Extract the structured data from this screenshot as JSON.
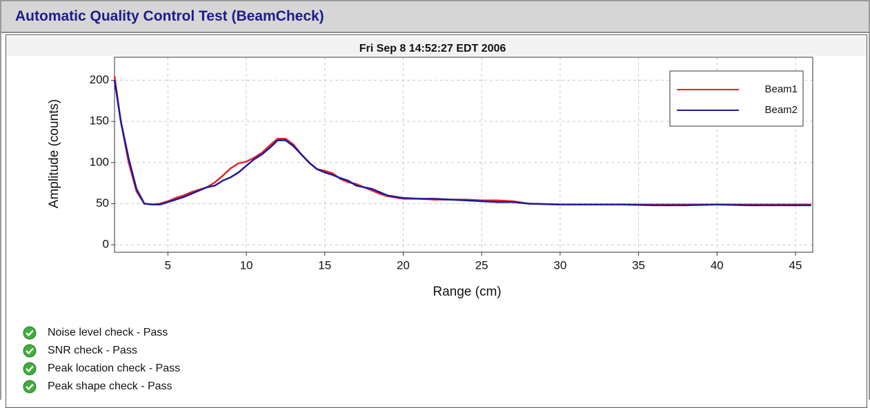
{
  "header": {
    "title": "Automatic Quality Control Test (BeamCheck)"
  },
  "chart_data": {
    "type": "line",
    "title": "Fri Sep 8 14:52:27 EDT 2006",
    "x_label": "Range (cm)",
    "y_label": "Amplitude (counts)",
    "x": [
      1.6,
      2,
      2.5,
      3,
      3.5,
      4,
      4.5,
      5,
      5.5,
      6,
      6.5,
      7,
      7.5,
      8,
      8.5,
      9,
      9.5,
      10,
      10.5,
      11,
      11.5,
      12,
      12.5,
      13,
      13.5,
      14,
      14.5,
      15,
      15.5,
      16,
      16.5,
      17,
      17.5,
      18,
      18.5,
      19,
      20,
      21,
      22,
      23,
      24,
      25,
      26,
      27,
      28,
      30,
      32,
      34,
      36,
      38,
      40,
      42,
      44,
      46
    ],
    "series": [
      {
        "name": "Beam1",
        "color": "#e8202a",
        "values": [
          205,
          150,
          100,
          65,
          50,
          49,
          50,
          53,
          57,
          60,
          64,
          67,
          70,
          76,
          84,
          93,
          99,
          101,
          106,
          112,
          121,
          129,
          129,
          122,
          110,
          100,
          92,
          90,
          87,
          80,
          76,
          74,
          70,
          66,
          62,
          59,
          56,
          56,
          55,
          55,
          55,
          54,
          54,
          53,
          50,
          49,
          49,
          49,
          49,
          49,
          49,
          49,
          49,
          49
        ]
      },
      {
        "name": "Beam2",
        "color": "#1a1a9c",
        "values": [
          200,
          150,
          105,
          68,
          50,
          49,
          49,
          52,
          55,
          58,
          62,
          66,
          70,
          72,
          78,
          82,
          88,
          96,
          104,
          110,
          118,
          127,
          127,
          120,
          110,
          100,
          92,
          88,
          85,
          81,
          78,
          72,
          70,
          68,
          64,
          60,
          57,
          56,
          56,
          55,
          54,
          53,
          52,
          52,
          50,
          49,
          49,
          49,
          48,
          48,
          49,
          48,
          48,
          48
        ]
      }
    ],
    "xlim": [
      1.6,
      46.1
    ],
    "ylim": [
      -9,
      228
    ],
    "xticks": [
      5,
      10,
      15,
      20,
      25,
      30,
      35,
      40,
      45
    ],
    "yticks": [
      0,
      50,
      100,
      150,
      200
    ],
    "grid": true,
    "legend": "upper right"
  },
  "checks": [
    "Noise level check - Pass",
    "SNR check - Pass",
    "Peak location check - Pass",
    "Peak shape check - Pass"
  ]
}
